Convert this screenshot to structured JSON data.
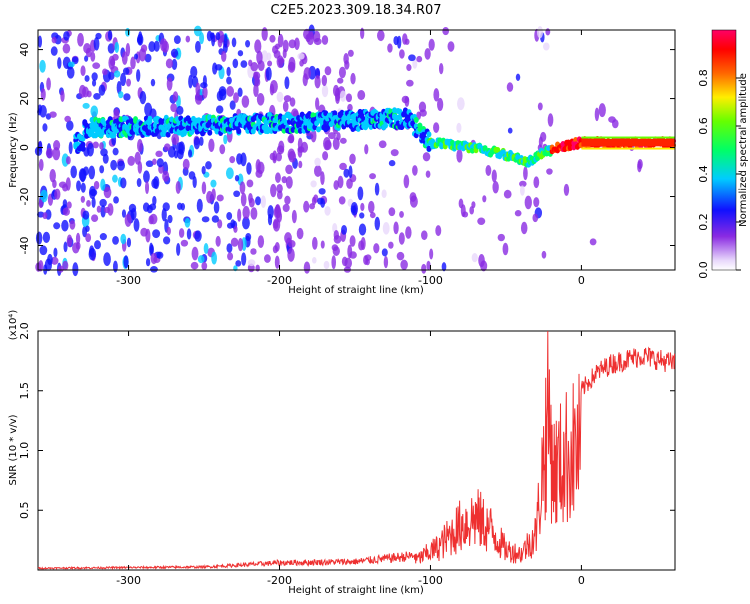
{
  "figure": {
    "title": "C2E5.2023.309.18.34.R07"
  },
  "chart_data": [
    {
      "type": "heatmap",
      "xlabel": "Height of straight line (km)",
      "ylabel": "Frequency (Hz)",
      "xlim": [
        -360,
        62
      ],
      "ylim": [
        -50,
        48
      ],
      "x_ticks": [
        -300,
        -200,
        -100,
        0
      ],
      "x_tick_labels": [
        "-300",
        "-200",
        "-100",
        "0"
      ],
      "y_ticks": [
        -40,
        -20,
        0,
        20,
        40
      ],
      "y_tick_labels": [
        "-40",
        "-20",
        "0",
        "20",
        "40"
      ],
      "colorbar": {
        "label": "Normalized spectral amplitude",
        "range": [
          0,
          1
        ],
        "ticks": [
          0.0,
          0.2,
          0.4,
          0.6,
          0.8
        ],
        "tick_labels": [
          "0.0",
          "0.2",
          "0.4",
          "0.6",
          "0.8"
        ]
      },
      "ridge": {
        "description_points": [
          {
            "x": -330,
            "freq": 8
          },
          {
            "x": -250,
            "freq": 9
          },
          {
            "x": -200,
            "freq": 10
          },
          {
            "x": -150,
            "freq": 11
          },
          {
            "x": -115,
            "freq": 12
          },
          {
            "x": -100,
            "freq": 2
          },
          {
            "x": -70,
            "freq": 0
          },
          {
            "x": -50,
            "freq": -3
          },
          {
            "x": -35,
            "freq": -6
          },
          {
            "x": -25,
            "freq": -2
          },
          {
            "x": -10,
            "freq": 1
          },
          {
            "x": 0,
            "freq": 2
          },
          {
            "x": 62,
            "freq": 2
          }
        ]
      },
      "grid": false
    },
    {
      "type": "line",
      "xlabel": "Height of straight line (km)",
      "ylabel": "SNR (10 * v/v)",
      "y_multiplier": "(x10⁴)",
      "xlim": [
        -360,
        62
      ],
      "ylim": [
        0,
        20000
      ],
      "x_ticks": [
        -300,
        -200,
        -100,
        0
      ],
      "x_tick_labels": [
        "-300",
        "-200",
        "-100",
        "0"
      ],
      "y_ticks": [
        5000,
        10000,
        15000,
        20000
      ],
      "y_tick_labels": [
        "0.5",
        "1.0",
        "1.5",
        "2.0"
      ],
      "series": [
        {
          "color": "#ee3030",
          "envelope": [
            {
              "x": -360,
              "y": 150
            },
            {
              "x": -250,
              "y": 250
            },
            {
              "x": -200,
              "y": 600
            },
            {
              "x": -150,
              "y": 700
            },
            {
              "x": -110,
              "y": 1200
            },
            {
              "x": -95,
              "y": 2800
            },
            {
              "x": -80,
              "y": 5500
            },
            {
              "x": -70,
              "y": 6500
            },
            {
              "x": -60,
              "y": 5000
            },
            {
              "x": -50,
              "y": 2500
            },
            {
              "x": -40,
              "y": 2000
            },
            {
              "x": -30,
              "y": 4500
            },
            {
              "x": -22,
              "y": 19500
            },
            {
              "x": -18,
              "y": 12000
            },
            {
              "x": -10,
              "y": 14000
            },
            {
              "x": 0,
              "y": 15500
            },
            {
              "x": 10,
              "y": 17000
            },
            {
              "x": 20,
              "y": 17800
            },
            {
              "x": 40,
              "y": 18500
            },
            {
              "x": 62,
              "y": 17800
            }
          ]
        }
      ],
      "grid": false
    }
  ]
}
